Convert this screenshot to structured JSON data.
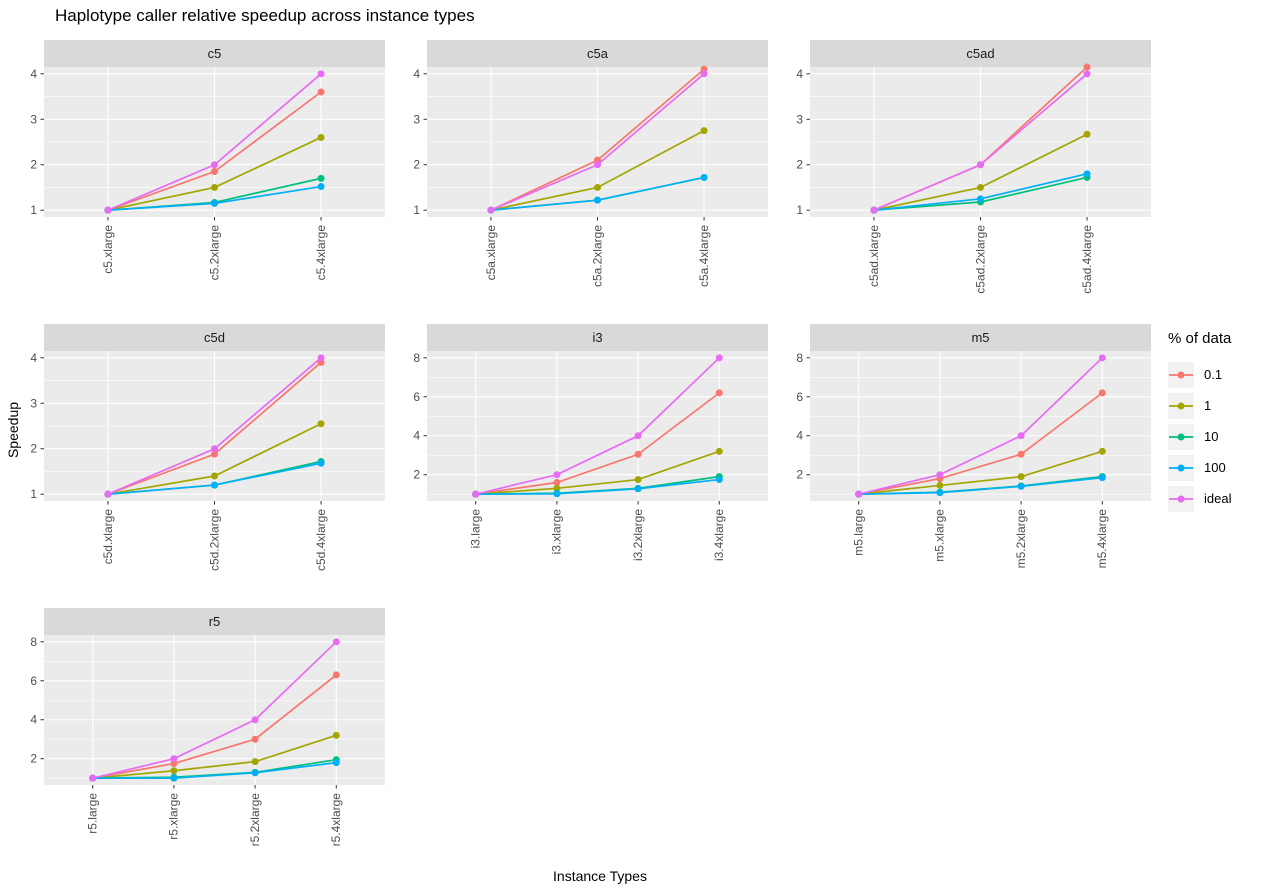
{
  "title": "Haplotype caller relative speedup across instance types",
  "axes": {
    "x_label": "Instance Types",
    "y_label": "Speedup"
  },
  "legend": {
    "title": "% of data",
    "entries": [
      {
        "label": "0.1",
        "color": "#F8766D"
      },
      {
        "label": "1",
        "color": "#A3A500"
      },
      {
        "label": "10",
        "color": "#00BF7D"
      },
      {
        "label": "100",
        "color": "#00B0F6"
      },
      {
        "label": "ideal",
        "color": "#E76BF3"
      }
    ]
  },
  "style": {
    "panel_bg": "#EBEBEB",
    "strip_bg": "#D9D9D9",
    "grid_color": "#FFFFFF",
    "axis_text_color": "#4D4D4D",
    "tick_color": "#333333",
    "strip_text_color": "#1A1A1A"
  },
  "chart_data": [
    {
      "type": "line",
      "facet": "c5",
      "categories": [
        "c5.xlarge",
        "c5.2xlarge",
        "c5.4xlarge"
      ],
      "yticks": [
        1,
        2,
        3,
        4
      ],
      "yminor": [
        1.5,
        2.5,
        3.5
      ],
      "ylim": [
        0.85,
        4.15
      ],
      "series": [
        {
          "name": "0.1",
          "values": [
            1.0,
            1.85,
            3.6
          ]
        },
        {
          "name": "1",
          "values": [
            1.0,
            1.5,
            2.6
          ]
        },
        {
          "name": "10",
          "values": [
            1.0,
            1.17,
            1.7
          ]
        },
        {
          "name": "100",
          "values": [
            1.0,
            1.15,
            1.52
          ]
        },
        {
          "name": "ideal",
          "values": [
            1.0,
            2.0,
            4.0
          ]
        }
      ]
    },
    {
      "type": "line",
      "facet": "c5a",
      "categories": [
        "c5a.xlarge",
        "c5a.2xlarge",
        "c5a.4xlarge"
      ],
      "yticks": [
        1,
        2,
        3,
        4
      ],
      "yminor": [
        1.5,
        2.5,
        3.5
      ],
      "ylim": [
        0.85,
        4.15
      ],
      "series": [
        {
          "name": "0.1",
          "values": [
            1.0,
            2.1,
            4.1
          ]
        },
        {
          "name": "1",
          "values": [
            1.0,
            1.5,
            2.75
          ]
        },
        {
          "name": "10",
          "values": [
            1.0,
            1.22,
            1.72
          ]
        },
        {
          "name": "100",
          "values": [
            1.0,
            1.22,
            1.72
          ]
        },
        {
          "name": "ideal",
          "values": [
            1.0,
            2.0,
            4.0
          ]
        }
      ]
    },
    {
      "type": "line",
      "facet": "c5ad",
      "categories": [
        "c5ad.xlarge",
        "c5ad.2xlarge",
        "c5ad.4xlarge"
      ],
      "yticks": [
        1,
        2,
        3,
        4
      ],
      "yminor": [
        1.5,
        2.5,
        3.5
      ],
      "ylim": [
        0.85,
        4.15
      ],
      "series": [
        {
          "name": "0.1",
          "values": [
            1.0,
            2.0,
            4.15
          ]
        },
        {
          "name": "1",
          "values": [
            1.0,
            1.5,
            2.67
          ]
        },
        {
          "name": "10",
          "values": [
            1.0,
            1.18,
            1.72
          ]
        },
        {
          "name": "100",
          "values": [
            1.0,
            1.25,
            1.8
          ]
        },
        {
          "name": "ideal",
          "values": [
            1.0,
            2.0,
            4.0
          ]
        }
      ]
    },
    {
      "type": "line",
      "facet": "c5d",
      "categories": [
        "c5d.xlarge",
        "c5d.2xlarge",
        "c5d.4xlarge"
      ],
      "yticks": [
        1,
        2,
        3,
        4
      ],
      "yminor": [
        1.5,
        2.5,
        3.5
      ],
      "ylim": [
        0.85,
        4.15
      ],
      "series": [
        {
          "name": "0.1",
          "values": [
            1.0,
            1.88,
            3.9
          ]
        },
        {
          "name": "1",
          "values": [
            1.0,
            1.4,
            2.55
          ]
        },
        {
          "name": "10",
          "values": [
            1.0,
            1.2,
            1.72
          ]
        },
        {
          "name": "100",
          "values": [
            1.0,
            1.2,
            1.68
          ]
        },
        {
          "name": "ideal",
          "values": [
            1.0,
            2.0,
            4.0
          ]
        }
      ]
    },
    {
      "type": "line",
      "facet": "i3",
      "categories": [
        "i3.large",
        "i3.xlarge",
        "i3.2xlarge",
        "i3.4xlarge"
      ],
      "yticks": [
        2,
        4,
        6,
        8
      ],
      "yminor": [
        1,
        3,
        5,
        7
      ],
      "ylim": [
        0.65,
        8.35
      ],
      "series": [
        {
          "name": "0.1",
          "values": [
            1.0,
            1.6,
            3.05,
            6.2
          ]
        },
        {
          "name": "1",
          "values": [
            1.0,
            1.3,
            1.75,
            3.2
          ]
        },
        {
          "name": "10",
          "values": [
            1.0,
            1.05,
            1.3,
            1.9
          ]
        },
        {
          "name": "100",
          "values": [
            1.0,
            1.02,
            1.28,
            1.75
          ]
        },
        {
          "name": "ideal",
          "values": [
            1.0,
            2.0,
            4.0,
            8.0
          ]
        }
      ]
    },
    {
      "type": "line",
      "facet": "m5",
      "categories": [
        "m5.large",
        "m5.xlarge",
        "m5.2xlarge",
        "m5.4xlarge"
      ],
      "yticks": [
        2,
        4,
        6,
        8
      ],
      "yminor": [
        1,
        3,
        5,
        7
      ],
      "ylim": [
        0.65,
        8.35
      ],
      "series": [
        {
          "name": "0.1",
          "values": [
            1.0,
            1.8,
            3.05,
            6.2
          ]
        },
        {
          "name": "1",
          "values": [
            1.0,
            1.45,
            1.9,
            3.2
          ]
        },
        {
          "name": "10",
          "values": [
            1.0,
            1.1,
            1.42,
            1.9
          ]
        },
        {
          "name": "100",
          "values": [
            1.0,
            1.08,
            1.4,
            1.85
          ]
        },
        {
          "name": "ideal",
          "values": [
            1.0,
            2.0,
            4.0,
            8.0
          ]
        }
      ]
    },
    {
      "type": "line",
      "facet": "r5",
      "categories": [
        "r5.large",
        "r5.xlarge",
        "r5.2xlarge",
        "r5.4xlarge"
      ],
      "yticks": [
        2,
        4,
        6,
        8
      ],
      "yminor": [
        1,
        3,
        5,
        7
      ],
      "ylim": [
        0.65,
        8.35
      ],
      "series": [
        {
          "name": "0.1",
          "values": [
            1.0,
            1.75,
            3.0,
            6.3
          ]
        },
        {
          "name": "1",
          "values": [
            1.0,
            1.38,
            1.85,
            3.2
          ]
        },
        {
          "name": "10",
          "values": [
            1.0,
            1.05,
            1.3,
            1.95
          ]
        },
        {
          "name": "100",
          "values": [
            1.0,
            1.0,
            1.28,
            1.8
          ]
        },
        {
          "name": "ideal",
          "values": [
            1.0,
            2.0,
            4.0,
            8.0
          ]
        }
      ]
    }
  ]
}
